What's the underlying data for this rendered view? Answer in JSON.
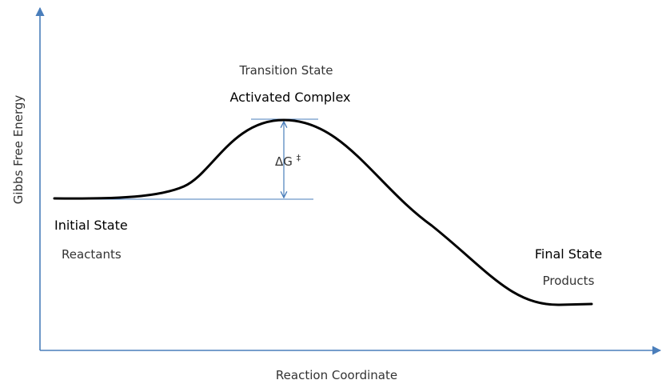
{
  "axes": {
    "x_label": "Reaction Coordinate",
    "y_label": "Gibbs Free Energy",
    "color": "#4a7ebb"
  },
  "curve": {
    "color": "#000000"
  },
  "labels": {
    "transition_state": "Transition State",
    "activated_complex": "Activated Complex",
    "initial_state": "Initial State",
    "reactants": "Reactants",
    "final_state": "Final State",
    "products": "Products",
    "delta_g": "ΔG",
    "delta_g_superscript": "‡"
  },
  "markers": {
    "color": "#4a7ebb"
  }
}
